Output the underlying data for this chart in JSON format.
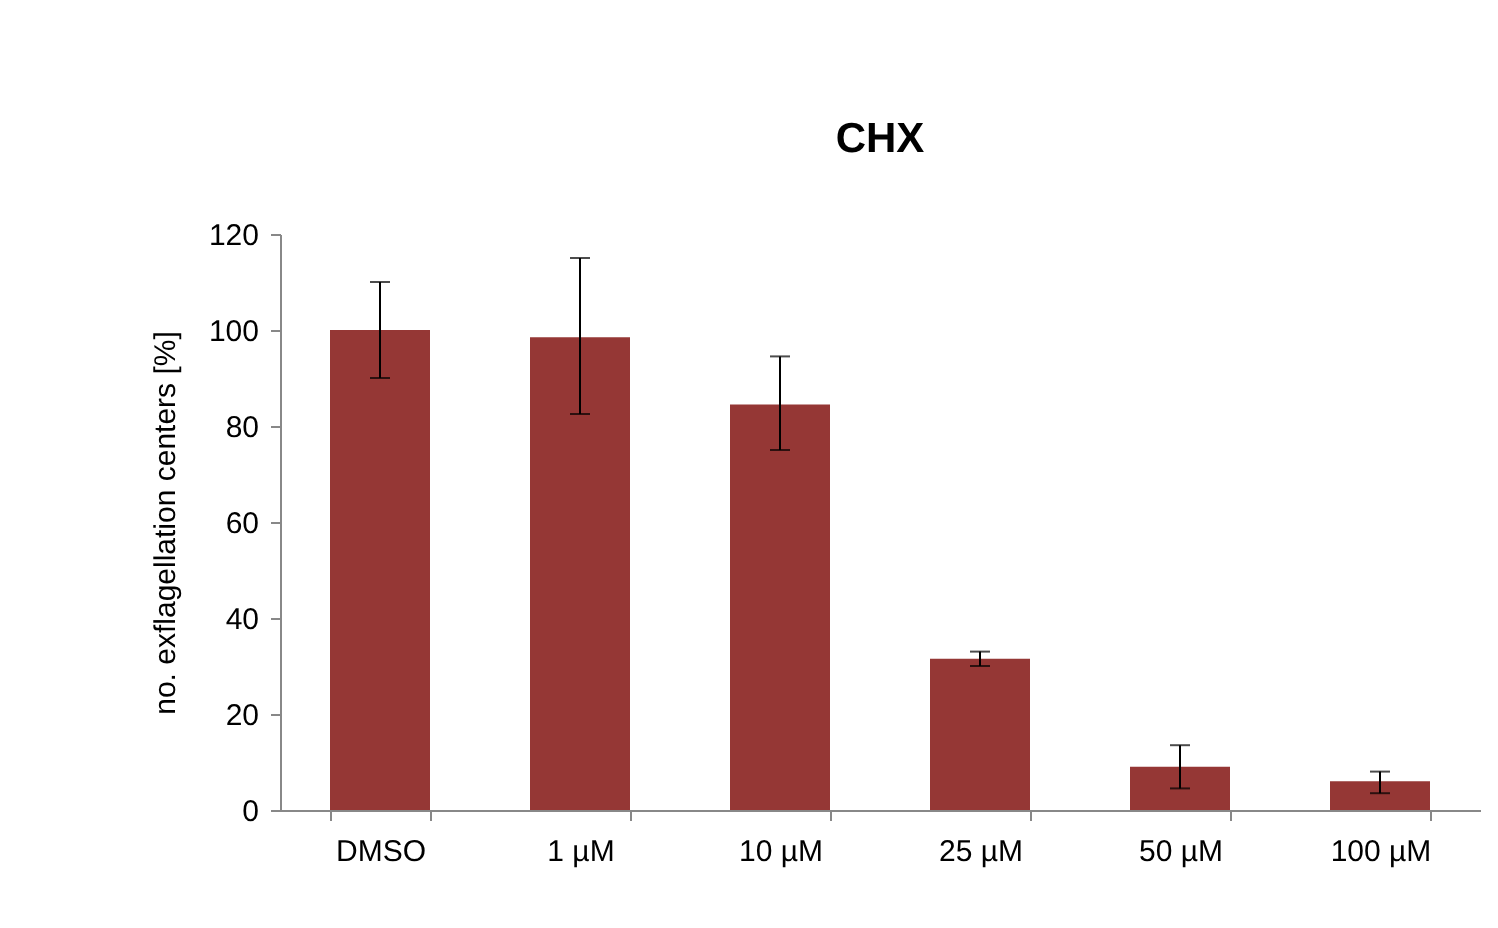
{
  "chart_data": {
    "type": "bar",
    "title": "CHX",
    "ylabel": "no. exflagellation  centers [%]",
    "categories": [
      "DMSO",
      "1 µM",
      "10 µM",
      "25 µM",
      "50 µM",
      "100 µM"
    ],
    "values": [
      100,
      98.5,
      84.5,
      31.5,
      9,
      6
    ],
    "errors": [
      [
        90,
        110
      ],
      [
        82.5,
        115
      ],
      [
        75,
        94.5
      ],
      [
        30,
        33
      ],
      [
        4.5,
        13.5
      ],
      [
        3.5,
        8
      ]
    ],
    "color": "#953735",
    "ylim": [
      0,
      120
    ],
    "yticks": [
      0,
      20,
      40,
      60,
      80,
      100,
      120
    ],
    "grid": false
  }
}
